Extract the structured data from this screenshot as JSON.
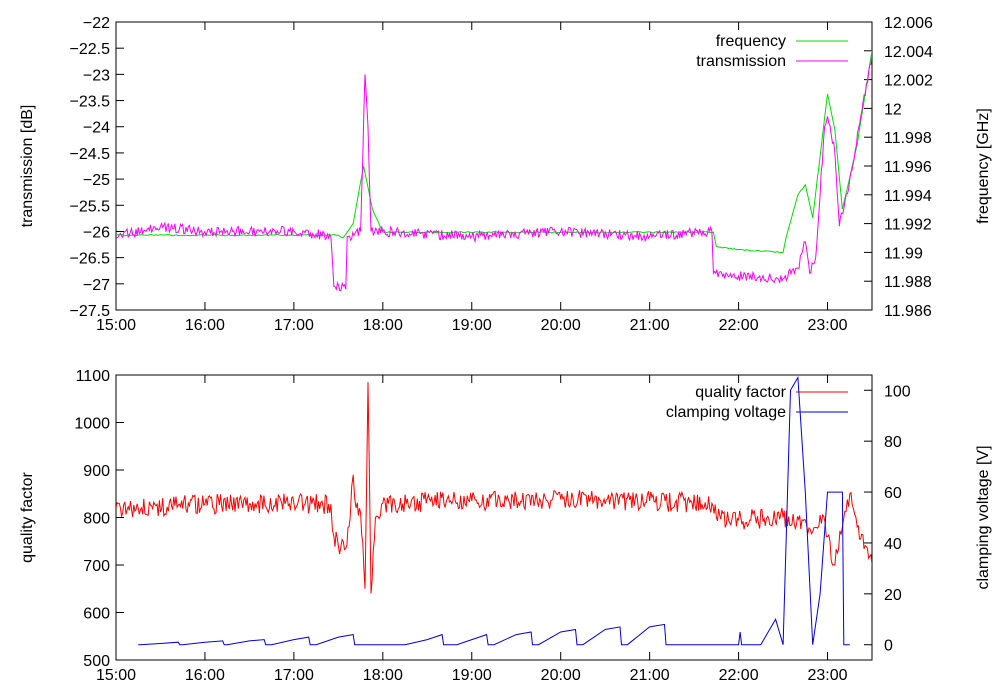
{
  "chart_data": [
    {
      "type": "line",
      "xlabel": "",
      "ylabel": "transmission [dB]",
      "y2label": "frequency [GHz]",
      "xlim": [
        "15:00",
        "23:30"
      ],
      "ylim": [
        -27.5,
        -22
      ],
      "y2lim": [
        11.986,
        12.006
      ],
      "x_ticks": [
        "15:00",
        "16:00",
        "17:00",
        "18:00",
        "19:00",
        "20:00",
        "21:00",
        "22:00",
        "23:00"
      ],
      "y_ticks": [
        "−22",
        "−22.5",
        "−23",
        "−23.5",
        "−24",
        "−24.5",
        "−25",
        "−25.5",
        "−26",
        "−26.5",
        "−27",
        "−27.5"
      ],
      "y2_ticks": [
        "12.006",
        "12.004",
        "12.002",
        "12",
        "11.998",
        "11.996",
        "11.994",
        "11.992",
        "11.99",
        "11.988",
        "11.986"
      ],
      "legend_position": "top-right",
      "grid": false,
      "series": [
        {
          "name": "frequency",
          "axis": "right",
          "color": "#00dd00",
          "points": [
            [
              "15:00",
              11.9912
            ],
            [
              "17:30",
              11.9912
            ],
            [
              "17:33",
              11.991
            ],
            [
              "17:40",
              11.992
            ],
            [
              "17:47",
              11.996
            ],
            [
              "17:53",
              11.993
            ],
            [
              "18:00",
              11.9914
            ],
            [
              "21:30",
              11.9914
            ],
            [
              "21:43",
              11.9914
            ],
            [
              "21:45",
              11.9904
            ],
            [
              "22:00",
              11.9902
            ],
            [
              "22:30",
              11.99
            ],
            [
              "22:32",
              11.991
            ],
            [
              "22:40",
              11.994
            ],
            [
              "22:45",
              11.9947
            ],
            [
              "22:50",
              11.9924
            ],
            [
              "23:00",
              12.001
            ],
            [
              "23:05",
              11.9985
            ],
            [
              "23:10",
              11.993
            ],
            [
              "23:15",
              11.9952
            ],
            [
              "23:20",
              11.9975
            ],
            [
              "23:30",
              12.004
            ]
          ]
        },
        {
          "name": "transmission",
          "axis": "left",
          "color": "#ff00ff",
          "points": [
            [
              "15:00",
              -26.1
            ],
            [
              "15:30",
              -25.9
            ],
            [
              "16:00",
              -26.0
            ],
            [
              "17:00",
              -26.0
            ],
            [
              "17:15",
              -26.05
            ],
            [
              "17:25",
              -26.1
            ],
            [
              "17:27",
              -27.05
            ],
            [
              "17:35",
              -27.1
            ],
            [
              "17:36",
              -26.1
            ],
            [
              "17:45",
              -26.0
            ],
            [
              "17:48",
              -23.0
            ],
            [
              "17:50",
              -24.0
            ],
            [
              "17:52",
              -26.0
            ],
            [
              "18:00",
              -26.0
            ],
            [
              "19:00",
              -26.1
            ],
            [
              "20:00",
              -26.0
            ],
            [
              "21:00",
              -26.1
            ],
            [
              "21:42",
              -26.0
            ],
            [
              "21:43",
              -26.8
            ],
            [
              "22:00",
              -26.85
            ],
            [
              "22:30",
              -26.9
            ],
            [
              "22:40",
              -26.7
            ],
            [
              "22:45",
              -26.2
            ],
            [
              "22:48",
              -26.8
            ],
            [
              "22:52",
              -26.5
            ],
            [
              "22:58",
              -24.0
            ],
            [
              "23:00",
              -23.8
            ],
            [
              "23:05",
              -24.5
            ],
            [
              "23:08",
              -25.9
            ],
            [
              "23:15",
              -25.0
            ],
            [
              "23:30",
              -22.6
            ]
          ]
        }
      ]
    },
    {
      "type": "line",
      "xlabel": "",
      "ylabel": "quality factor",
      "y2label": "clamping voltage [V]",
      "xlim": [
        "15:00",
        "23:30"
      ],
      "ylim": [
        500,
        1100
      ],
      "y2lim": [
        -6,
        106
      ],
      "x_ticks": [
        "15:00",
        "16:00",
        "17:00",
        "18:00",
        "19:00",
        "20:00",
        "21:00",
        "22:00",
        "23:00"
      ],
      "y_ticks": [
        "1100",
        "1000",
        "900",
        "800",
        "700",
        "600",
        "500"
      ],
      "y2_ticks": [
        "100",
        "80",
        "60",
        "40",
        "20",
        "0"
      ],
      "legend_position": "top-right",
      "grid": false,
      "series": [
        {
          "name": "quality factor",
          "axis": "left",
          "color": "#ff0000",
          "points": [
            [
              "15:00",
              820
            ],
            [
              "16:00",
              828
            ],
            [
              "17:00",
              830
            ],
            [
              "17:25",
              828
            ],
            [
              "17:27",
              760
            ],
            [
              "17:30",
              740
            ],
            [
              "17:35",
              735
            ],
            [
              "17:38",
              800
            ],
            [
              "17:40",
              890
            ],
            [
              "17:42",
              820
            ],
            [
              "17:45",
              810
            ],
            [
              "17:48",
              650
            ],
            [
              "17:50",
              1085
            ],
            [
              "17:52",
              640
            ],
            [
              "17:55",
              800
            ],
            [
              "18:00",
              830
            ],
            [
              "19:00",
              835
            ],
            [
              "20:00",
              838
            ],
            [
              "21:00",
              835
            ],
            [
              "21:42",
              830
            ],
            [
              "21:45",
              800
            ],
            [
              "22:00",
              795
            ],
            [
              "22:30",
              800
            ],
            [
              "22:45",
              795
            ],
            [
              "22:50",
              770
            ],
            [
              "22:55",
              805
            ],
            [
              "23:00",
              760
            ],
            [
              "23:05",
              700
            ],
            [
              "23:10",
              780
            ],
            [
              "23:15",
              850
            ],
            [
              "23:20",
              780
            ],
            [
              "23:30",
              700
            ]
          ]
        },
        {
          "name": "clamping voltage",
          "axis": "right",
          "color": "#0000dd",
          "points": [
            [
              "15:15",
              0
            ],
            [
              "15:16",
              0
            ],
            [
              "15:30",
              0.5
            ],
            [
              "15:42",
              1
            ],
            [
              "15:43",
              0
            ],
            [
              "15:45",
              0
            ],
            [
              "16:00",
              1
            ],
            [
              "16:12",
              1.5
            ],
            [
              "16:13",
              0
            ],
            [
              "16:15",
              0
            ],
            [
              "16:30",
              1.5
            ],
            [
              "16:40",
              2
            ],
            [
              "16:41",
              0
            ],
            [
              "16:45",
              0
            ],
            [
              "17:00",
              2
            ],
            [
              "17:10",
              3
            ],
            [
              "17:11",
              0
            ],
            [
              "17:15",
              0
            ],
            [
              "17:30",
              3
            ],
            [
              "17:40",
              4
            ],
            [
              "17:41",
              0
            ],
            [
              "18:15",
              0
            ],
            [
              "18:30",
              2
            ],
            [
              "18:40",
              4
            ],
            [
              "18:41",
              0
            ],
            [
              "18:50",
              0
            ],
            [
              "19:00",
              2
            ],
            [
              "19:10",
              4
            ],
            [
              "19:11",
              0
            ],
            [
              "19:15",
              0
            ],
            [
              "19:30",
              4
            ],
            [
              "19:40",
              5
            ],
            [
              "19:41",
              0
            ],
            [
              "19:45",
              0
            ],
            [
              "20:00",
              5
            ],
            [
              "20:10",
              6
            ],
            [
              "20:11",
              0
            ],
            [
              "20:15",
              0
            ],
            [
              "20:30",
              6
            ],
            [
              "20:40",
              7
            ],
            [
              "20:41",
              0
            ],
            [
              "20:45",
              0
            ],
            [
              "21:00",
              7
            ],
            [
              "21:10",
              8
            ],
            [
              "21:11",
              0
            ],
            [
              "21:15",
              0
            ],
            [
              "22:00",
              0
            ],
            [
              "22:01",
              5
            ],
            [
              "22:02",
              0
            ],
            [
              "22:15",
              0
            ],
            [
              "22:25",
              10
            ],
            [
              "22:30",
              0
            ],
            [
              "22:35",
              100
            ],
            [
              "22:40",
              105
            ],
            [
              "22:45",
              60
            ],
            [
              "22:50",
              0
            ],
            [
              "22:55",
              20
            ],
            [
              "23:00",
              60
            ],
            [
              "23:10",
              60
            ],
            [
              "23:11",
              0
            ],
            [
              "23:15",
              0
            ]
          ]
        }
      ]
    }
  ]
}
